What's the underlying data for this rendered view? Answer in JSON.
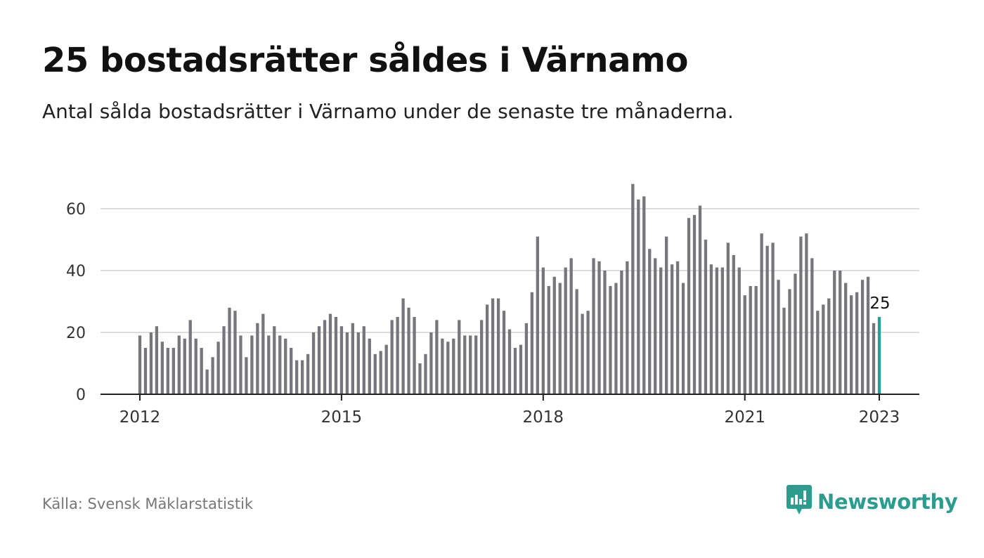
{
  "header": {
    "title": "25 bostadsrätter såldes i Värnamo",
    "subtitle": "Antal sålda bostadsrätter i Värnamo under de senaste tre månaderna."
  },
  "footer": {
    "source": "Källa: Svensk Mäklarstatistik"
  },
  "brand": {
    "name": "Newsworthy",
    "color": "#2a9d8f",
    "icon": "newsworthy-logo-icon"
  },
  "colors": {
    "bar": "#77767b",
    "highlight": "#22a295",
    "grid": "#dddddd",
    "axis": "#222222"
  },
  "chart_data": {
    "type": "bar",
    "title": "",
    "xlabel": "",
    "ylabel": "",
    "ylim": [
      0,
      70
    ],
    "yticks": [
      0,
      20,
      40,
      60
    ],
    "grid": true,
    "x_start": "2012-01",
    "x_end": "2023-01",
    "frequency": "monthly",
    "x_tick_labels": [
      "2012",
      "2015",
      "2018",
      "2021",
      "2023"
    ],
    "highlight_label": "25",
    "values": [
      19,
      15,
      20,
      22,
      17,
      15,
      15,
      19,
      18,
      24,
      18,
      15,
      8,
      12,
      17,
      22,
      28,
      27,
      19,
      12,
      19,
      23,
      26,
      19,
      22,
      19,
      18,
      15,
      11,
      11,
      13,
      20,
      22,
      24,
      26,
      25,
      22,
      20,
      23,
      20,
      22,
      18,
      13,
      14,
      16,
      24,
      25,
      31,
      28,
      25,
      10,
      13,
      20,
      24,
      18,
      17,
      18,
      24,
      19,
      19,
      19,
      24,
      29,
      31,
      31,
      27,
      21,
      15,
      16,
      23,
      33,
      51,
      41,
      35,
      38,
      36,
      41,
      44,
      34,
      26,
      27,
      44,
      43,
      40,
      35,
      36,
      40,
      43,
      68,
      63,
      64,
      47,
      44,
      41,
      51,
      42,
      43,
      36,
      57,
      58,
      61,
      50,
      42,
      41,
      41,
      49,
      45,
      41,
      32,
      35,
      35,
      52,
      48,
      49,
      37,
      28,
      34,
      39,
      51,
      52,
      44,
      27,
      29,
      31,
      40,
      40,
      36,
      32,
      33,
      37,
      38,
      23,
      25
    ]
  }
}
